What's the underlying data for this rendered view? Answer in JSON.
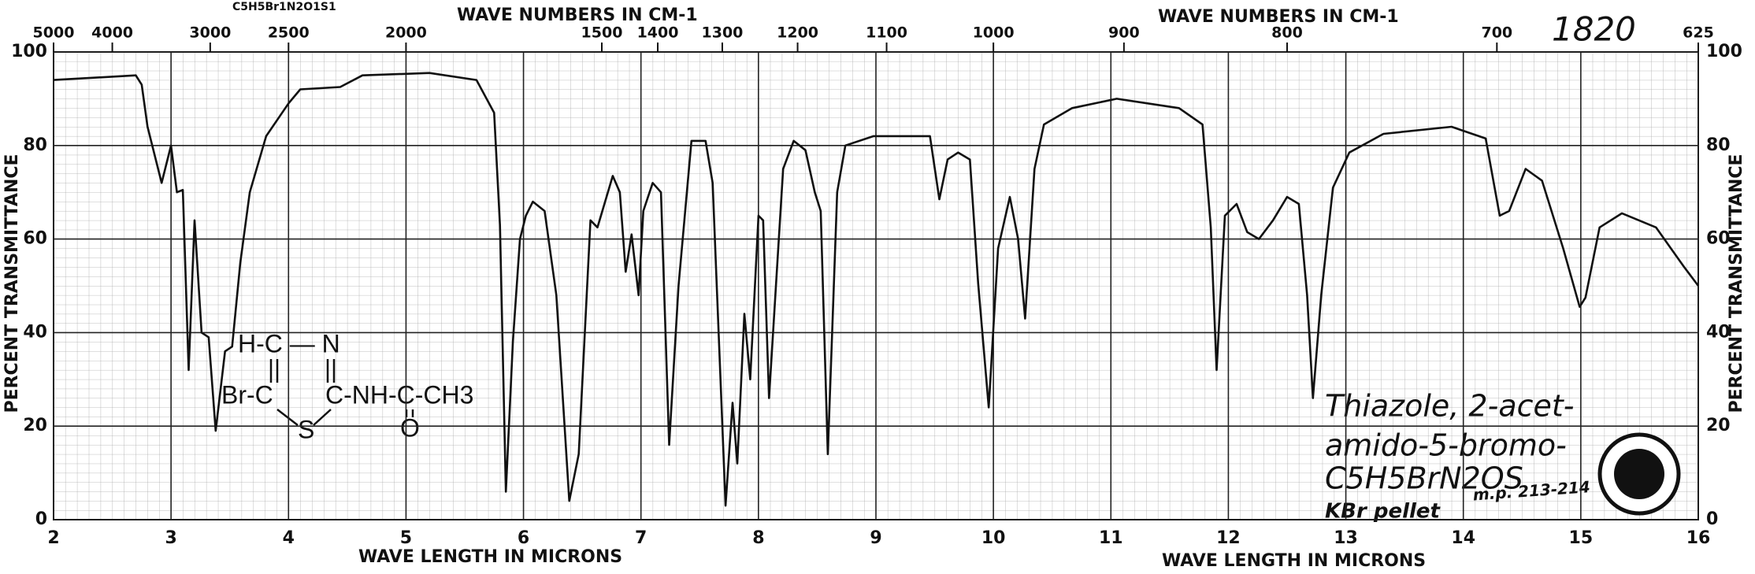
{
  "chart_data": {
    "type": "line",
    "formula_label": "C5H5Br1N2O1S1",
    "top_axis_labels": [
      "WAVE NUMBERS IN CM-1",
      "WAVE NUMBERS IN CM-1"
    ],
    "x_axis_labels": [
      "WAVE LENGTH IN MICRONS",
      "WAVE LENGTH IN MICRONS"
    ],
    "y_axis_labels": [
      "PERCENT TRANSMITTANCE",
      "PERCENT TRANSMITTANCE"
    ],
    "spectrum_number": "1820",
    "annotations": [
      "Thiazole, 2-acet-",
      "amido-5-bromo-",
      "C5H5BrN2OS",
      "KBr pellet",
      "m.p. 213-214"
    ],
    "structure_labels": [
      "H-C — N",
      "Br-C",
      "C-NH-C-CH3",
      "S",
      "O"
    ],
    "color": "#111111",
    "grid": true,
    "xlim": [
      2,
      16
    ],
    "xticks": [
      2,
      3,
      4,
      5,
      6,
      7,
      8,
      9,
      10,
      11,
      12,
      13,
      14,
      15,
      16
    ],
    "top_ticks": [
      5000,
      4000,
      3000,
      2500,
      2000,
      1500,
      1400,
      1300,
      1200,
      1100,
      1000,
      900,
      800,
      700,
      625
    ],
    "ylim": [
      0,
      100
    ],
    "yticks": [
      0,
      20,
      40,
      60,
      80,
      100
    ],
    "x": [
      2.0,
      2.7,
      2.75,
      2.8,
      2.92,
      3.0,
      3.05,
      3.1,
      3.15,
      3.2,
      3.26,
      3.32,
      3.38,
      3.46,
      3.52,
      3.59,
      3.67,
      3.81,
      4.0,
      4.1,
      4.44,
      4.63,
      5.2,
      5.6,
      5.75,
      5.8,
      5.85,
      5.91,
      5.97,
      6.02,
      6.08,
      6.18,
      6.28,
      6.39,
      6.47,
      6.57,
      6.63,
      6.76,
      6.82,
      6.87,
      6.92,
      6.98,
      7.02,
      7.1,
      7.17,
      7.24,
      7.32,
      7.43,
      7.55,
      7.61,
      7.72,
      7.78,
      7.82,
      7.88,
      7.93,
      8.0,
      8.04,
      8.09,
      8.21,
      8.3,
      8.4,
      8.48,
      8.53,
      8.59,
      8.67,
      8.74,
      8.98,
      9.46,
      9.54,
      9.61,
      9.7,
      9.8,
      9.87,
      9.96,
      10.04,
      10.14,
      10.21,
      10.27,
      10.35,
      10.43,
      10.67,
      11.05,
      11.58,
      11.78,
      11.85,
      11.9,
      11.97,
      12.07,
      12.16,
      12.26,
      12.38,
      12.5,
      12.6,
      12.67,
      12.72,
      12.79,
      12.89,
      13.03,
      13.32,
      13.9,
      14.19,
      14.31,
      14.39,
      14.53,
      14.67,
      14.85,
      14.99,
      15.04,
      15.16,
      15.35,
      15.64,
      15.88,
      16.0
    ],
    "values": [
      94,
      95,
      93,
      84,
      72,
      80,
      70,
      70.5,
      32,
      64,
      40,
      39,
      19,
      36,
      37,
      55,
      70,
      82,
      89,
      92,
      92.5,
      95,
      95.5,
      94,
      87,
      63,
      6,
      38,
      60,
      65,
      68,
      66,
      48,
      4,
      14,
      64,
      62.5,
      73.5,
      70,
      53,
      61,
      48,
      66,
      72,
      70,
      16,
      50,
      81,
      81,
      72,
      3,
      25,
      12,
      44,
      30,
      65,
      64,
      26,
      75,
      81,
      79,
      70,
      66,
      14,
      70,
      80,
      82,
      82,
      68.5,
      77,
      78.5,
      77,
      50.5,
      24,
      58,
      69,
      60,
      43,
      75,
      84.5,
      88,
      90,
      88,
      84.5,
      62.5,
      32,
      65,
      67.5,
      61.5,
      60,
      64,
      69,
      67.5,
      48,
      26,
      48,
      71,
      78.5,
      82.5,
      84,
      81.5,
      65,
      66,
      75,
      72.5,
      58,
      45.5,
      47.5,
      62.5,
      65.5,
      62.5,
      54,
      50
    ]
  }
}
